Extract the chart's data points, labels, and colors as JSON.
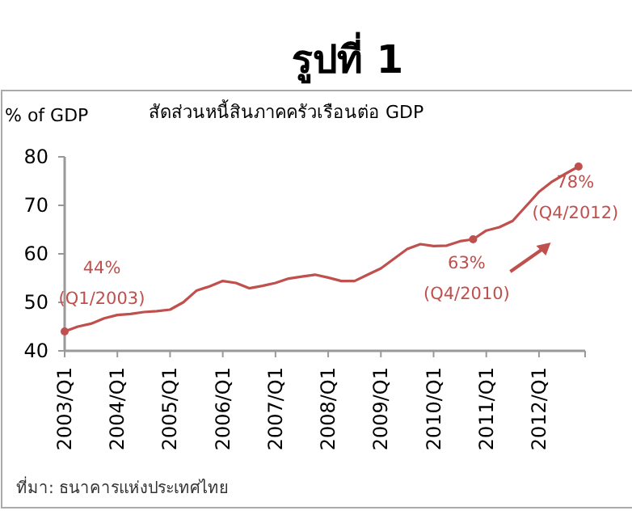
{
  "chart_data": {
    "type": "line",
    "title": "รูปที่ 1",
    "subtitle": "สัดส่วนหนี้สินภาคครัวเรือนต่อ GDP",
    "ylabel": "% of GDP",
    "categories": [
      "2003/Q1",
      null,
      null,
      null,
      "2004/Q1",
      null,
      null,
      null,
      "2005/Q1",
      null,
      null,
      null,
      "2006/Q1",
      null,
      null,
      null,
      "2007/Q1",
      null,
      null,
      null,
      "2008/Q1",
      null,
      null,
      null,
      "2009/Q1",
      null,
      null,
      null,
      "2010/Q1",
      null,
      null,
      null,
      "2011/Q1",
      null,
      null,
      null,
      "2012/Q1",
      null,
      null,
      null
    ],
    "series": [
      {
        "color": "#c0504d",
        "values": [
          44,
          45,
          45.6,
          46.7,
          47.4,
          47.6,
          48,
          48.2,
          48.5,
          50,
          52.4,
          53.3,
          54.4,
          54,
          52.9,
          53.4,
          54,
          54.9,
          55.3,
          55.7,
          55.1,
          54.4,
          54.4,
          55.7,
          57,
          59,
          61,
          62,
          61.6,
          61.7,
          62.6,
          63,
          64.8,
          65.5,
          66.8,
          69.8,
          72.8,
          74.9,
          76.5,
          78
        ]
      }
    ],
    "ylim": [
      40,
      80
    ],
    "yticks": [
      40,
      50,
      60,
      70,
      80
    ],
    "marker": "none",
    "line_style": "solid",
    "annotations": [
      {
        "text": "44%\n(Q1/2003)",
        "x": "2003/Q1",
        "y": 44
      },
      {
        "text": "63%\n(Q4/2010)",
        "y": 63
      },
      {
        "text": "78%\n(Q4/2012)",
        "y": 78
      },
      "ที่มา: ธนาคารแห่งประเทศไทย"
    ]
  }
}
